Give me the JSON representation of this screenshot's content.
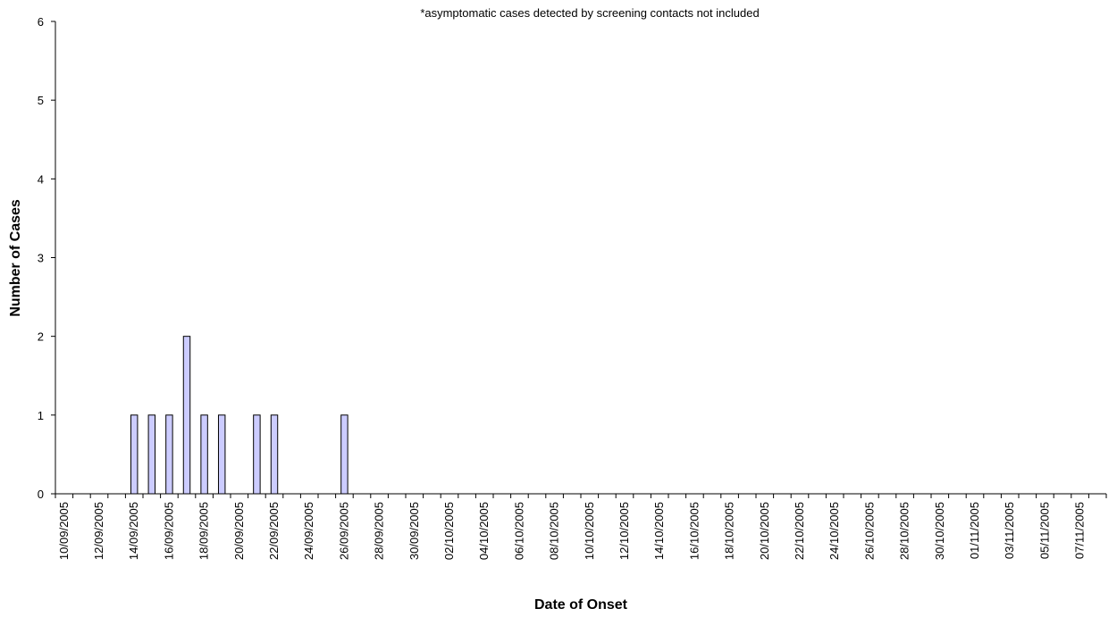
{
  "chart_data": {
    "type": "bar",
    "title": "",
    "note": "*asymptomatic cases detected by screening contacts not included",
    "xlabel": "Date of Onset",
    "ylabel": "Number of Cases",
    "ylim": [
      0,
      6
    ],
    "yticks": [
      0,
      1,
      2,
      3,
      4,
      5,
      6
    ],
    "grid": false,
    "legend": "none",
    "colors": {
      "bar_fill": "#ccccff",
      "bar_stroke": "#000000"
    },
    "x_tick_labels": [
      "10/09/2005",
      "12/09/2005",
      "14/09/2005",
      "16/09/2005",
      "18/09/2005",
      "20/09/2005",
      "22/09/2005",
      "24/09/2005",
      "26/09/2005",
      "28/09/2005",
      "30/09/2005",
      "02/10/2005",
      "04/10/2005",
      "06/10/2005",
      "08/10/2005",
      "10/10/2005",
      "12/10/2005",
      "14/10/2005",
      "16/10/2005",
      "18/10/2005",
      "20/10/2005",
      "22/10/2005",
      "24/10/2005",
      "26/10/2005",
      "28/10/2005",
      "30/10/2005",
      "01/11/2005",
      "03/11/2005",
      "05/11/2005",
      "07/11/2005"
    ],
    "categories": [
      "10/09/2005",
      "11/09/2005",
      "12/09/2005",
      "13/09/2005",
      "14/09/2005",
      "15/09/2005",
      "16/09/2005",
      "17/09/2005",
      "18/09/2005",
      "19/09/2005",
      "20/09/2005",
      "21/09/2005",
      "22/09/2005",
      "23/09/2005",
      "24/09/2005",
      "25/09/2005",
      "26/09/2005",
      "27/09/2005",
      "28/09/2005",
      "29/09/2005",
      "30/09/2005",
      "01/10/2005",
      "02/10/2005",
      "03/10/2005",
      "04/10/2005",
      "05/10/2005",
      "06/10/2005",
      "07/10/2005",
      "08/10/2005",
      "09/10/2005",
      "10/10/2005",
      "11/10/2005",
      "12/10/2005",
      "13/10/2005",
      "14/10/2005",
      "15/10/2005",
      "16/10/2005",
      "17/10/2005",
      "18/10/2005",
      "19/10/2005",
      "20/10/2005",
      "21/10/2005",
      "22/10/2005",
      "23/10/2005",
      "24/10/2005",
      "25/10/2005",
      "26/10/2005",
      "27/10/2005",
      "28/10/2005",
      "29/10/2005",
      "30/10/2005",
      "31/10/2005",
      "01/11/2005",
      "02/11/2005",
      "03/11/2005",
      "04/11/2005",
      "05/11/2005",
      "06/11/2005",
      "07/11/2005",
      "08/11/2005"
    ],
    "values": [
      0,
      0,
      0,
      0,
      1,
      1,
      1,
      2,
      1,
      1,
      0,
      1,
      1,
      0,
      0,
      0,
      1,
      0,
      0,
      0,
      0,
      0,
      0,
      0,
      0,
      0,
      0,
      0,
      0,
      0,
      0,
      0,
      0,
      0,
      0,
      0,
      0,
      0,
      0,
      0,
      0,
      0,
      0,
      0,
      0,
      0,
      0,
      0,
      0,
      0,
      0,
      0,
      0,
      0,
      0,
      0,
      0,
      0,
      0,
      0
    ]
  }
}
